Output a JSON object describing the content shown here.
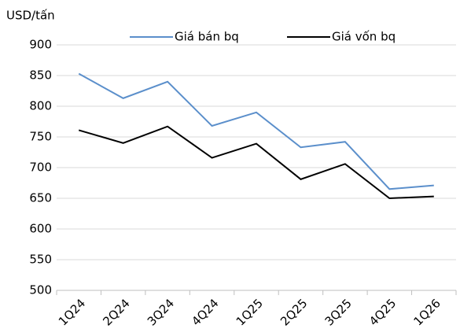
{
  "chart_data": {
    "type": "line",
    "y_label": "USD/tấn",
    "categories": [
      "1Q24",
      "2Q24",
      "3Q24",
      "4Q24",
      "1Q25",
      "2Q25",
      "3Q25",
      "4Q25",
      "1Q26"
    ],
    "series": [
      {
        "name": "Giá bán bq",
        "color": "#5b8fcb",
        "values": [
          853,
          813,
          840,
          768,
          790,
          733,
          742,
          665,
          671
        ]
      },
      {
        "name": "Giá vốn bq",
        "color": "#000000",
        "values": [
          761,
          740,
          767,
          716,
          739,
          681,
          706,
          650,
          653
        ]
      }
    ],
    "ylim": [
      500,
      900
    ],
    "yticks": [
      500,
      550,
      600,
      650,
      700,
      750,
      800,
      850,
      900
    ],
    "grid": true,
    "legend": "top"
  }
}
